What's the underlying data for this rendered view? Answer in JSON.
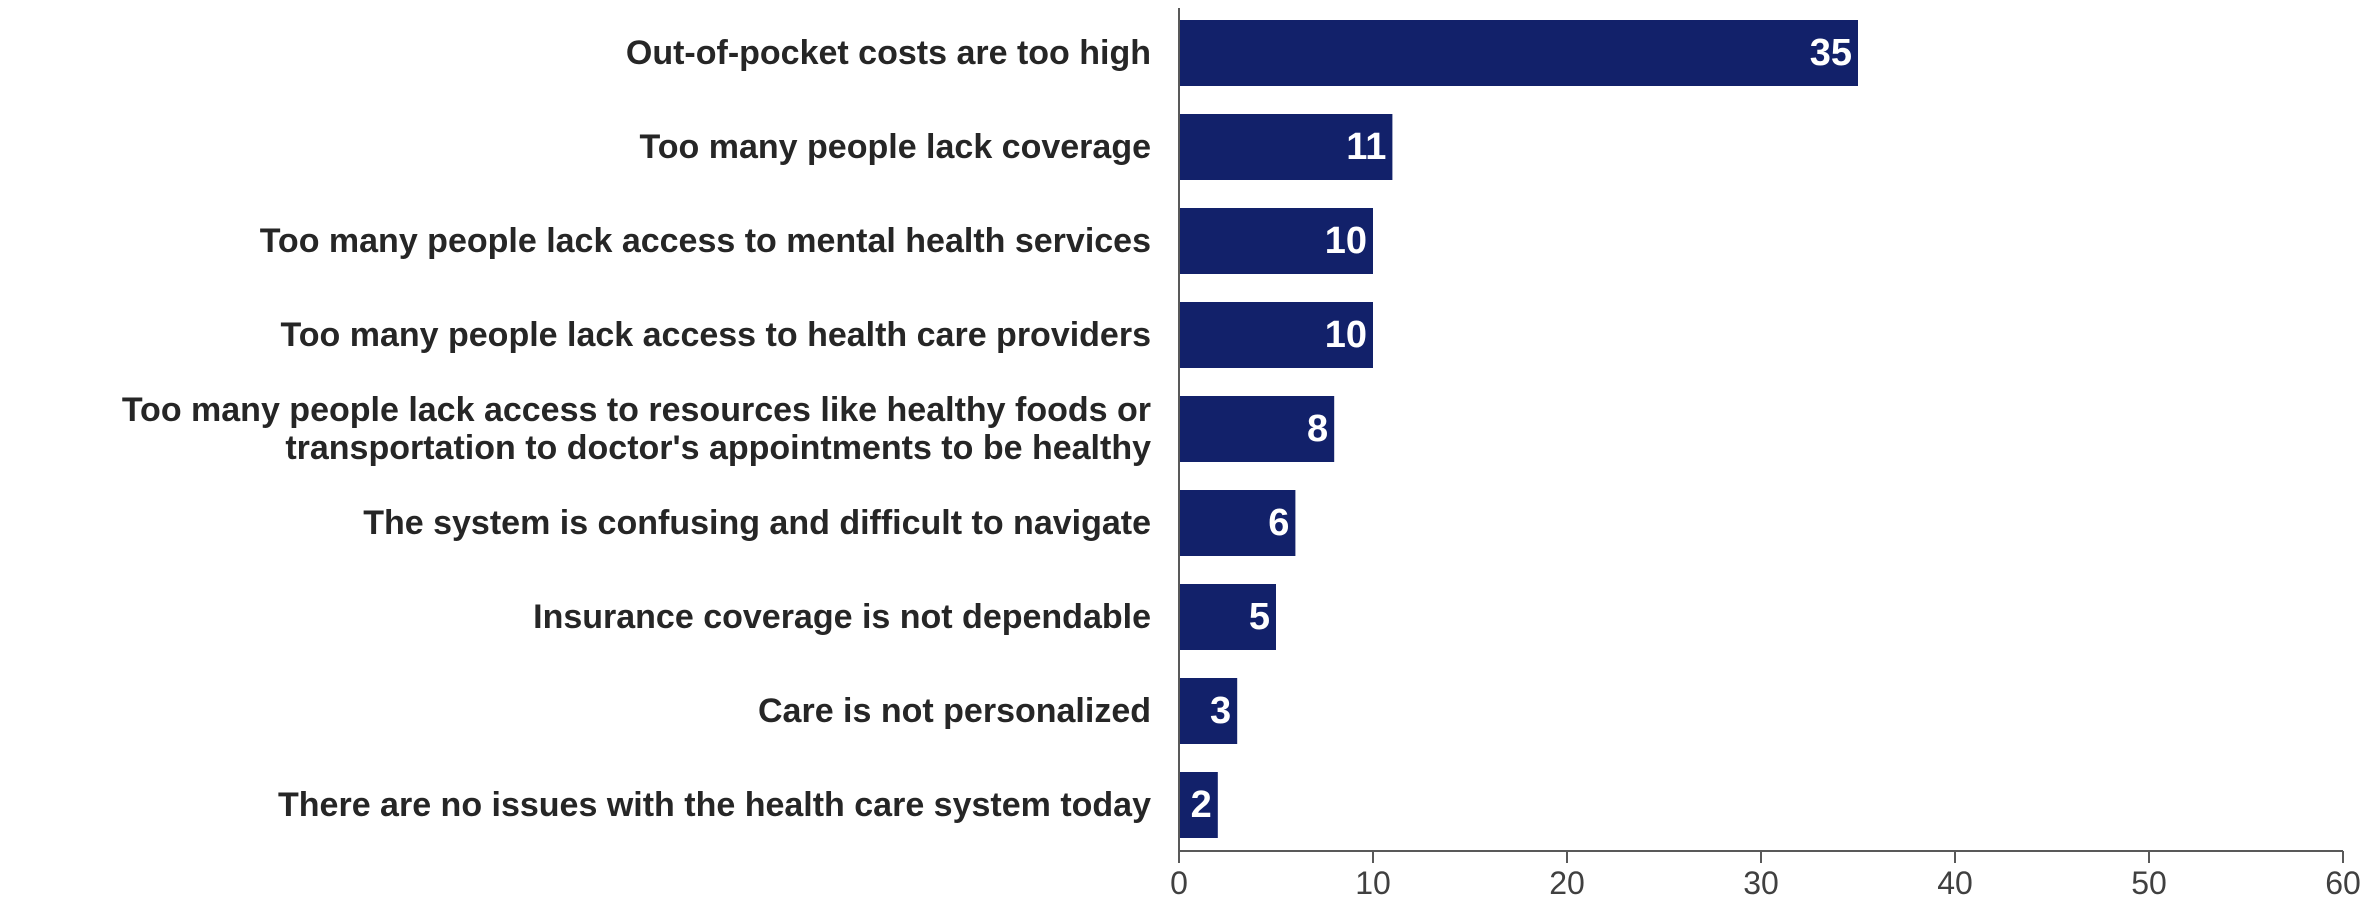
{
  "chart_data": {
    "type": "bar",
    "orientation": "horizontal",
    "categories": [
      "Out-of-pocket costs are too high",
      "Too many people lack coverage",
      "Too many people lack access to mental health services",
      "Too many people lack access to health care providers",
      "Too many people lack access to resources like healthy foods or\ntransportation to doctor's appointments to be healthy",
      "The system is confusing and difficult to navigate",
      "Insurance coverage is not dependable",
      "Care is not personalized",
      "There are no issues with the health care system today"
    ],
    "values": [
      35,
      11,
      10,
      10,
      8,
      6,
      5,
      3,
      2
    ],
    "data_labels": [
      "35",
      "11",
      "10",
      "10",
      "8",
      "6",
      "5",
      "3",
      "2"
    ],
    "xlim": [
      0,
      60
    ],
    "x_ticks": [
      "0",
      "10",
      "20",
      "30",
      "40",
      "50",
      "60"
    ],
    "title": "",
    "xlabel": "",
    "ylabel": "",
    "grid": false,
    "legend": "none",
    "bar_color": "#12216a"
  }
}
